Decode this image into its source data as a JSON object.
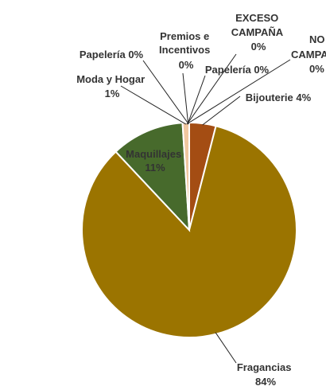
{
  "chart_data": {
    "type": "pie",
    "title": "",
    "slices": [
      {
        "label": "Bijouterie",
        "value": 4,
        "display": "4%",
        "color": "#a44d13"
      },
      {
        "label": "Fragancias",
        "value": 84,
        "display": "84%",
        "color": "#9b7400"
      },
      {
        "label": "Maquillajes",
        "value": 11,
        "display": "11%",
        "color": "#476a2c"
      },
      {
        "label": "Moda y Hogar",
        "value": 1,
        "display": "1%",
        "color": "#f0c7a0"
      },
      {
        "label": "Papelería",
        "value": 0,
        "display": "0%",
        "color": "#8a8a8a"
      },
      {
        "label": "Premios e Incentivos",
        "value": 0,
        "display": "0%",
        "color": "#5b7ea6"
      },
      {
        "label": "Papelería",
        "value": 0,
        "display": "0%",
        "color": "#8a8a8a"
      },
      {
        "label": "EXCESO CAMPAÑA",
        "value": 0,
        "display": "0%",
        "color": "#999999"
      },
      {
        "label": "NO CAMPAÑA",
        "value": 0,
        "display": "0%",
        "color": "#777777"
      }
    ],
    "legend": "none"
  }
}
